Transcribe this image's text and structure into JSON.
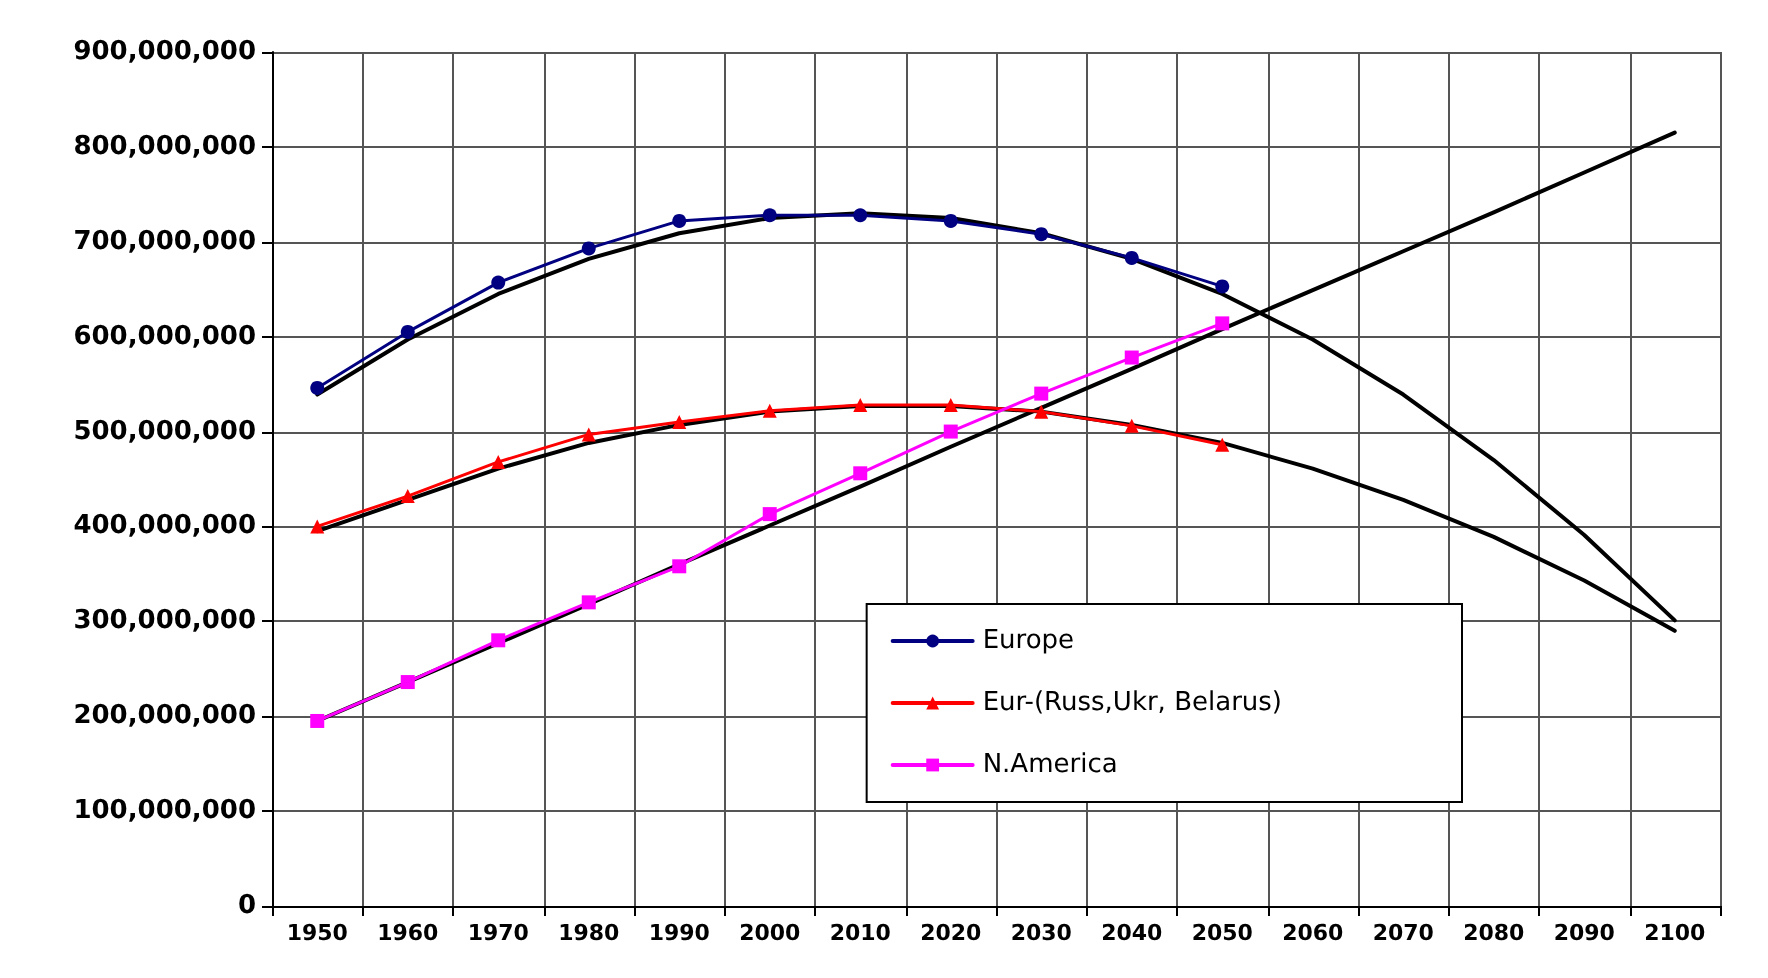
{
  "chart_data": {
    "type": "line",
    "categories": [
      "1950",
      "1960",
      "1970",
      "1980",
      "1990",
      "2000",
      "2010",
      "2020",
      "2030",
      "2040",
      "2050",
      "2060",
      "2070",
      "2080",
      "2090",
      "2100"
    ],
    "series": [
      {
        "name": "Europe",
        "color": "#000080",
        "marker": "circle",
        "values": [
          546000000,
          605000000,
          657000000,
          693000000,
          722000000,
          728000000,
          728000000,
          722000000,
          708000000,
          683000000,
          653000000,
          null,
          null,
          null,
          null,
          null
        ]
      },
      {
        "name": "Eur-(Russ,Ukr, Belarus)",
        "color": "#ff0000",
        "marker": "triangle",
        "values": [
          400000000,
          432000000,
          468000000,
          497000000,
          510000000,
          522000000,
          528000000,
          528000000,
          521000000,
          506000000,
          486000000,
          null,
          null,
          null,
          null,
          null
        ]
      },
      {
        "name": "N.America",
        "color": "#ff00ff",
        "marker": "square",
        "values": [
          195000000,
          236000000,
          280000000,
          320000000,
          358000000,
          413000000,
          456000000,
          500000000,
          540000000,
          578000000,
          614000000,
          null,
          null,
          null,
          null,
          null
        ]
      },
      {
        "color": "#000000",
        "marker": "none",
        "values": [
          539000000,
          597000000,
          645000000,
          682000000,
          709000000,
          725000000,
          730000000,
          725000000,
          709000000,
          682000000,
          645000000,
          597000000,
          539000000,
          470000000,
          391000000,
          301000000
        ]
      },
      {
        "color": "#000000",
        "marker": "none",
        "values": [
          395000000,
          428000000,
          461000000,
          488000000,
          507000000,
          521000000,
          527000000,
          527000000,
          521000000,
          507000000,
          488000000,
          461000000,
          428000000,
          389000000,
          343000000,
          290000000
        ]
      },
      {
        "color": "#000000",
        "marker": "none",
        "values": [
          195000000,
          236000000,
          277000000,
          318000000,
          360000000,
          401000000,
          442000000,
          484000000,
          525000000,
          566000000,
          608000000,
          649000000,
          690000000,
          731000000,
          773000000,
          815000000
        ]
      }
    ],
    "ylim": [
      0,
      900000000
    ],
    "yticks": [
      0,
      {
        "value": 100000000,
        "label": "100,000,000"
      },
      {
        "value": 200000000,
        "label": "200,000,000"
      },
      {
        "value": 300000000,
        "label": "300,000,000"
      },
      {
        "value": 400000000,
        "label": "400,000,000"
      },
      {
        "value": 500000000,
        "label": "500,000,000"
      },
      {
        "value": 600000000,
        "label": "600,000,000"
      },
      {
        "value": 700000000,
        "label": "700,000,000"
      },
      {
        "value": 800000000,
        "label": "800,000,000"
      },
      {
        "value": 900000000,
        "label": "900,000,000"
      }
    ],
    "grid": true,
    "legend": "bottom right"
  }
}
